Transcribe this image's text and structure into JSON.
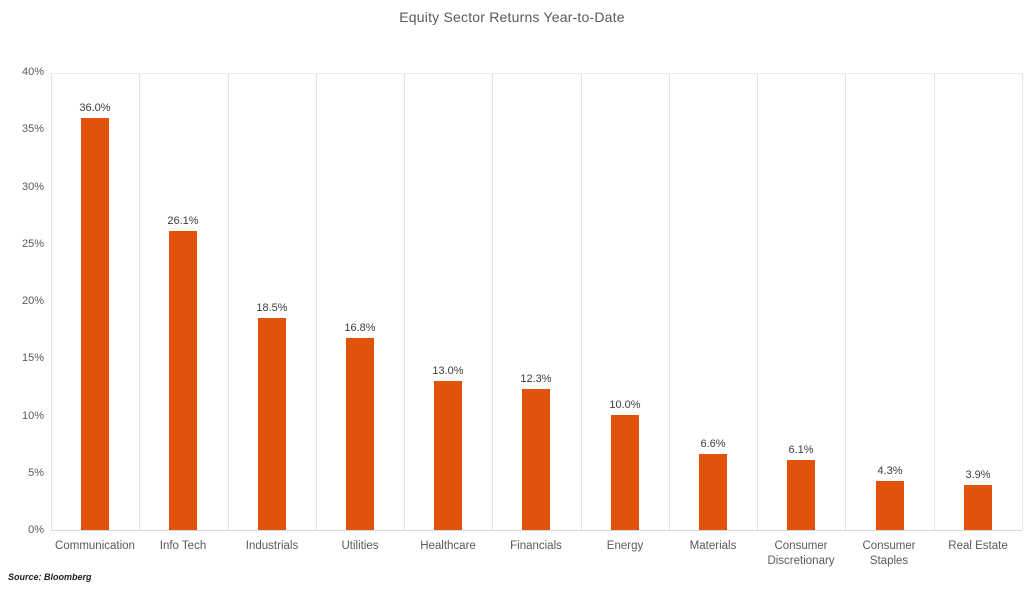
{
  "title": "Equity Sector Returns Year-to-Date",
  "source": "Source: Bloomberg",
  "colors": {
    "bar": "#e1530b",
    "title_text": "#595959",
    "axis_text": "#595959",
    "data_label_text": "#3c3c3c",
    "gridline": "#e4e4e4",
    "axis_line": "#d6d6d6"
  },
  "chart_data": {
    "type": "bar",
    "title": "Equity Sector Returns Year-to-Date",
    "categories": [
      "Communication",
      "Info Tech",
      "Industrials",
      "Utilities",
      "Healthcare",
      "Financials",
      "Energy",
      "Materials",
      "Consumer Discretionary",
      "Consumer Staples",
      "Real Estate"
    ],
    "values": [
      36.0,
      26.1,
      18.5,
      16.8,
      13.0,
      12.3,
      10.0,
      6.6,
      6.1,
      4.3,
      3.9
    ],
    "data_labels": [
      "36.0%",
      "26.1%",
      "18.5%",
      "16.8%",
      "13.0%",
      "12.3%",
      "10.0%",
      "6.6%",
      "6.1%",
      "4.3%",
      "3.9%"
    ],
    "xlabel": "",
    "ylabel": "",
    "ylim": [
      0,
      40
    ],
    "ytick_step": 5,
    "ytick_labels": [
      "0%",
      "5%",
      "10%",
      "15%",
      "20%",
      "25%",
      "30%",
      "35%",
      "40%"
    ],
    "grid": "vertical-category-separators",
    "legend": "none",
    "bar_color": "#e1530b",
    "source_note": "Source: Bloomberg"
  }
}
